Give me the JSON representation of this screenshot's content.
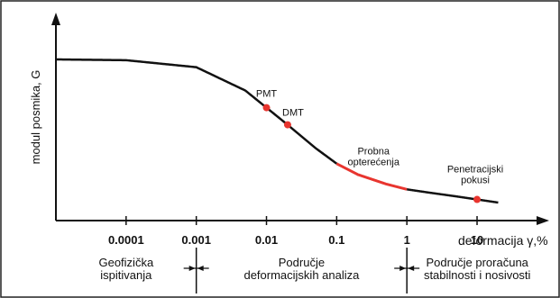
{
  "chart_data": {
    "type": "line",
    "title": "",
    "xlabel": "deformacija γ,%",
    "ylabel": "modul posmika, G",
    "x_scale": "log",
    "xlim": [
      1e-05,
      25
    ],
    "x_ticks": [
      "0.0001",
      "0.001",
      "0.01",
      "0.1",
      "1",
      "10"
    ],
    "curve": {
      "x": [
        1e-05,
        0.0001,
        0.001,
        0.005,
        0.01,
        0.02,
        0.05,
        0.1,
        0.2,
        0.5,
        1,
        2,
        5,
        10,
        20
      ],
      "y": [
        1.0,
        0.995,
        0.95,
        0.8,
        0.69,
        0.58,
        0.43,
        0.33,
        0.26,
        0.2,
        0.165,
        0.145,
        0.12,
        0.1,
        0.08
      ]
    },
    "highlight_segment": {
      "x_from": 0.1,
      "x_to": 1,
      "color": "#e8352f"
    },
    "points": [
      {
        "label": "PMT",
        "x": 0.01
      },
      {
        "label": "DMT",
        "x": 0.02
      },
      {
        "label": "Penetracijski\npokusi",
        "x": 10
      }
    ],
    "annotations": [
      {
        "label": "Probna\nopterećenja",
        "x": 0.4
      }
    ],
    "ranges": [
      {
        "label": "Geofizička\nispitivanja"
      },
      {
        "label": "Područje\ndeformacijskih analiza"
      },
      {
        "label": "Područje proračuna\nstabilnosti i nosivosti"
      }
    ],
    "range_dividers": [
      0.001,
      1
    ],
    "colors": {
      "curve": "#111111",
      "highlight": "#e8352f",
      "marker": "#e8352f",
      "axis": "#111111"
    }
  }
}
